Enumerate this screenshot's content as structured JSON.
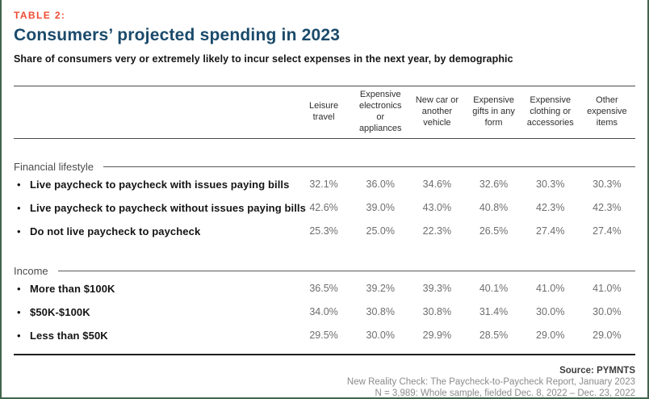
{
  "header": {
    "table_label": "TABLE 2:",
    "title": "Consumers’ projected spending in 2023",
    "subtitle": "Share of consumers very or extremely likely to incur select expenses in the next year, by demographic"
  },
  "chart_data": {
    "type": "table",
    "title": "Consumers’ projected spending in 2023",
    "subtitle": "Share of consumers very or extremely likely to incur select expenses in the next year, by demographic",
    "unit": "%",
    "columns": [
      "Leisure travel",
      "Expensive electronics or appliances",
      "New car or another vehicle",
      "Expensive gifts in any form",
      "Expensive clothing or accessories",
      "Other expensive items"
    ],
    "sections": [
      {
        "label": "Financial lifestyle",
        "rows": [
          {
            "label": "Live paycheck to paycheck with issues paying bills",
            "values": [
              32.1,
              36.0,
              34.6,
              32.6,
              30.3,
              30.3
            ]
          },
          {
            "label": "Live paycheck to paycheck without issues paying bills",
            "values": [
              42.6,
              39.0,
              43.0,
              40.8,
              42.3,
              42.3
            ]
          },
          {
            "label": "Do not live paycheck to paycheck",
            "values": [
              25.3,
              25.0,
              22.3,
              26.5,
              27.4,
              27.4
            ]
          }
        ]
      },
      {
        "label": "Income",
        "rows": [
          {
            "label": "More than $100K",
            "values": [
              36.5,
              39.2,
              39.3,
              40.1,
              41.0,
              41.0
            ]
          },
          {
            "label": "$50K-$100K",
            "values": [
              34.0,
              30.8,
              30.8,
              31.4,
              30.0,
              30.0
            ]
          },
          {
            "label": "Less than $50K",
            "values": [
              29.5,
              30.0,
              29.9,
              28.5,
              29.0,
              29.0
            ]
          }
        ]
      }
    ]
  },
  "footer": {
    "source": "Source: PYMNTS",
    "report": "New Reality Check: The Paycheck-to-Paycheck Report, January 2023",
    "sample": "N = 3,989: Whole sample, fielded Dec. 8, 2022 – Dec. 23, 2022"
  },
  "colors": {
    "accent_red": "#ee4b33",
    "title_navy": "#1b4a6b",
    "border_green": "#42654c",
    "rule_dark": "#4a4a4a",
    "value_gray": "#6e6e6e"
  }
}
